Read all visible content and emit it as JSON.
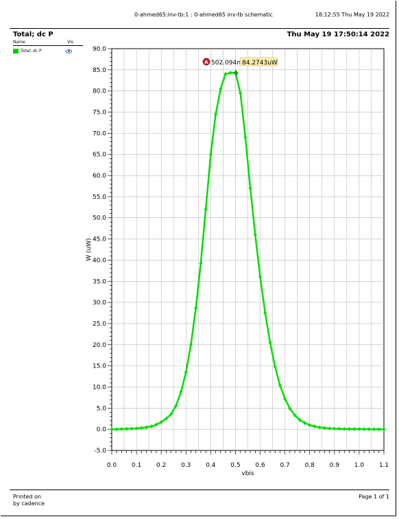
{
  "header": {
    "center_text": "0-ahmed65:inv-tb:1 : 0-ahmed65 inv-tb schematic",
    "right_text": "18:12:55  Thu May 19 2022"
  },
  "title": {
    "left": "Total; dc P",
    "right": "Thu May 19 17:50:14 2022"
  },
  "legend": {
    "col_name": "Name",
    "col_vis": "Vis",
    "items": [
      {
        "label": "Total; dc P",
        "color": "#00cc00"
      }
    ]
  },
  "footer": {
    "printed_line1": "Printed on",
    "printed_line2": "by cadence",
    "page": "Page 1 of 1"
  },
  "marker": {
    "badge": "A",
    "x_text": "502.094m",
    "y_text": "84.2743uW",
    "x": 0.502,
    "y": 84.2743
  },
  "chart_data": {
    "type": "line",
    "xlabel": "vbis",
    "ylabel": "W (uW)",
    "xlim": [
      0.0,
      1.1
    ],
    "ylim": [
      -5.0,
      90.0
    ],
    "x_ticks": [
      "0.0",
      "0.1",
      "0.2",
      "0.3",
      "0.4",
      "0.5",
      "0.6",
      "0.7",
      "0.8",
      "0.9",
      "1.0",
      "1.1"
    ],
    "y_ticks": [
      "-5.0",
      "0.0",
      "5.0",
      "10.0",
      "15.0",
      "20.0",
      "25.0",
      "30.0",
      "35.0",
      "40.0",
      "45.0",
      "50.0",
      "55.0",
      "60.0",
      "65.0",
      "70.0",
      "75.0",
      "80.0",
      "85.0",
      "90.0"
    ],
    "grid": true,
    "series": [
      {
        "name": "Total; dc P",
        "color": "#00dd00",
        "x": [
          0.0,
          0.02,
          0.04,
          0.06,
          0.08,
          0.1,
          0.12,
          0.14,
          0.16,
          0.18,
          0.2,
          0.22,
          0.24,
          0.26,
          0.28,
          0.3,
          0.32,
          0.34,
          0.36,
          0.38,
          0.4,
          0.42,
          0.44,
          0.46,
          0.48,
          0.5,
          0.52,
          0.54,
          0.56,
          0.58,
          0.6,
          0.62,
          0.64,
          0.66,
          0.68,
          0.7,
          0.72,
          0.74,
          0.76,
          0.78,
          0.8,
          0.82,
          0.84,
          0.86,
          0.88,
          0.9,
          0.92,
          0.94,
          0.96,
          0.98,
          1.0,
          1.02,
          1.04,
          1.06,
          1.08,
          1.1
        ],
        "y": [
          0.0,
          0.0,
          0.05,
          0.1,
          0.15,
          0.2,
          0.3,
          0.45,
          0.7,
          1.1,
          1.7,
          2.5,
          3.6,
          5.6,
          8.9,
          13.5,
          20.0,
          28.7,
          39.3,
          52.0,
          65.0,
          74.5,
          80.5,
          84.0,
          84.3,
          84.3,
          79.5,
          69.0,
          57.0,
          46.0,
          36.0,
          27.5,
          20.5,
          14.8,
          10.4,
          7.2,
          4.9,
          3.3,
          2.2,
          1.5,
          1.0,
          0.7,
          0.45,
          0.3,
          0.2,
          0.15,
          0.1,
          0.08,
          0.05,
          0.05,
          0.05,
          0.03,
          0.02,
          0.01,
          0.01,
          0.0
        ]
      }
    ]
  }
}
